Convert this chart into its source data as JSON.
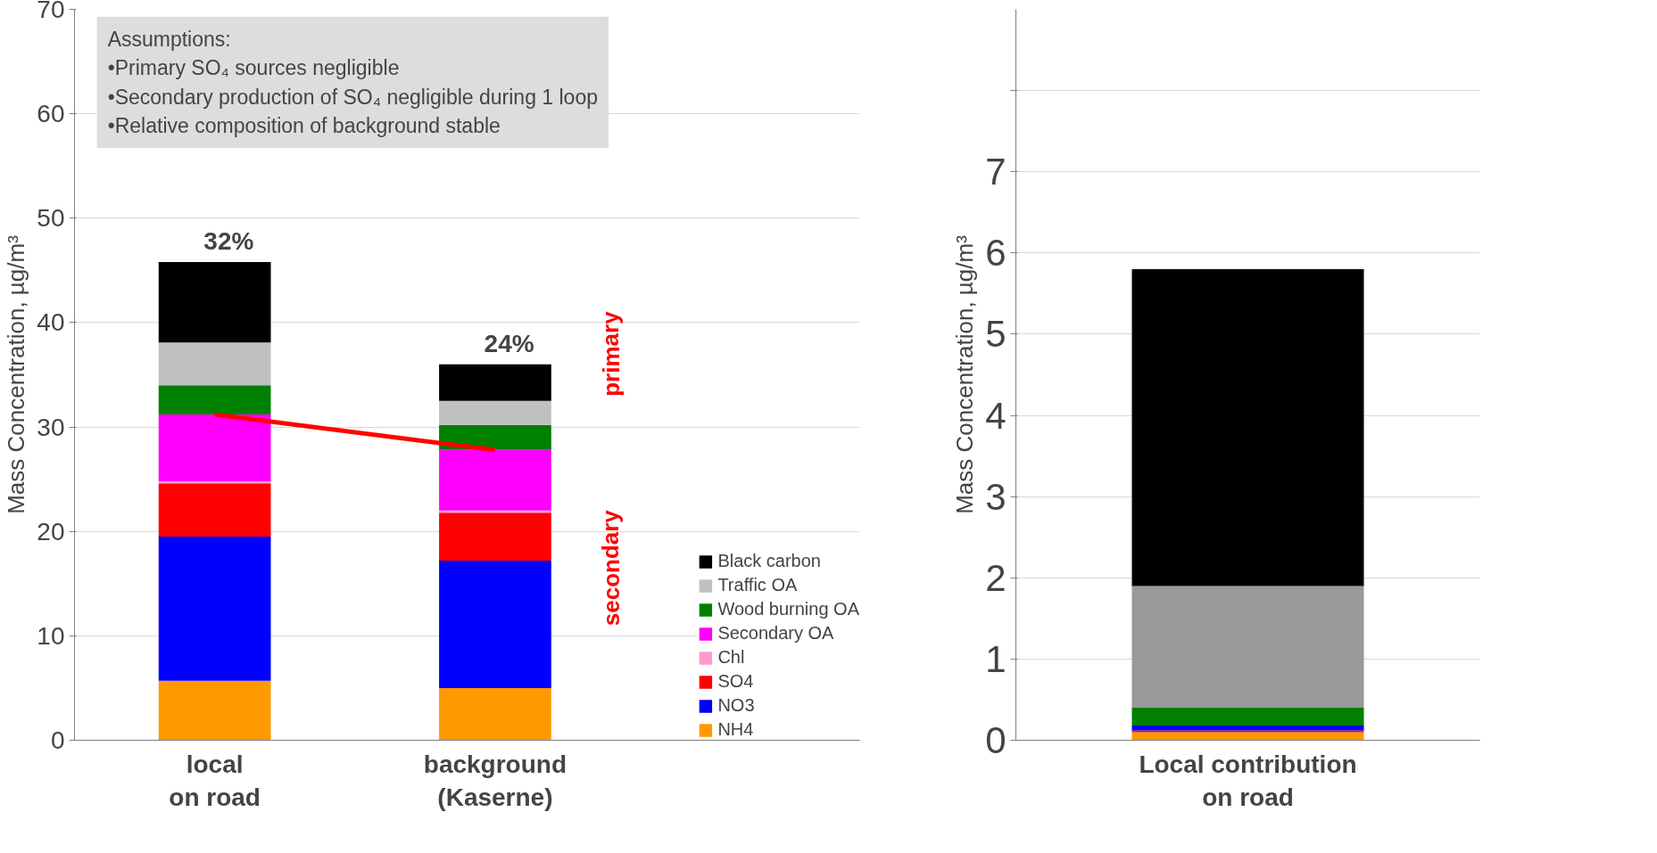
{
  "chart_data": [
    {
      "type": "bar",
      "stacked": true,
      "categories": [
        "local\non road",
        "background\n(Kaserne)"
      ],
      "ylabel": "Mass Concentration, µg/m³",
      "ylim": [
        0,
        70
      ],
      "yticks": [
        0,
        10,
        20,
        30,
        40,
        50,
        60,
        70
      ],
      "grid": "y",
      "legend": "bottom right",
      "series": [
        {
          "name": "NH4",
          "color": "#ff9900",
          "values": [
            5.7,
            5.0
          ]
        },
        {
          "name": "NO3",
          "color": "#0000ff",
          "values": [
            13.8,
            12.2
          ]
        },
        {
          "name": "SO4",
          "color": "#ff0000",
          "values": [
            5.1,
            4.6
          ]
        },
        {
          "name": "Chl",
          "color": "#ff99cc",
          "values": [
            0.2,
            0.2
          ]
        },
        {
          "name": "Secondary OA",
          "color": "#ff00ff",
          "values": [
            6.4,
            5.8
          ]
        },
        {
          "name": "Wood burning OA",
          "color": "#008000",
          "values": [
            2.8,
            2.4
          ]
        },
        {
          "name": "Traffic OA",
          "color": "#c0c0c0",
          "values": [
            4.1,
            2.3
          ]
        },
        {
          "name": "Black carbon",
          "color": "#000000",
          "values": [
            7.7,
            3.5
          ]
        },
        {
          "type": "line",
          "color": "#ff0000",
          "values": [
            31.2,
            27.8
          ]
        }
      ],
      "annotations": [
        "Assumptions:",
        "•Primary SO₄ sources negligible",
        "•Secondary production of SO₄ negligible during 1 loop",
        "•Relative composition of background stable",
        "primary",
        "secondary",
        "32%",
        "24%"
      ]
    },
    {
      "type": "bar",
      "stacked": true,
      "categories": [
        "Local contribution\non road"
      ],
      "ylabel": "Mass Concentration, µg/m³",
      "ylim": [
        0,
        9
      ],
      "yticks": [
        0,
        1,
        2,
        3,
        4,
        5,
        6,
        7,
        {
          "value": 8,
          "label": null
        }
      ],
      "grid": "y",
      "series": [
        {
          "color": "#ff9900",
          "values": [
            0.1
          ]
        },
        {
          "color": "#ff0000",
          "values": [
            0.02
          ]
        },
        {
          "color": "#0000ff",
          "values": [
            0.06
          ]
        },
        {
          "color": "#008000",
          "values": [
            0.22
          ]
        },
        {
          "color": "#999999",
          "values": [
            1.5
          ]
        },
        {
          "color": "#000000",
          "values": [
            3.9
          ]
        }
      ]
    }
  ]
}
